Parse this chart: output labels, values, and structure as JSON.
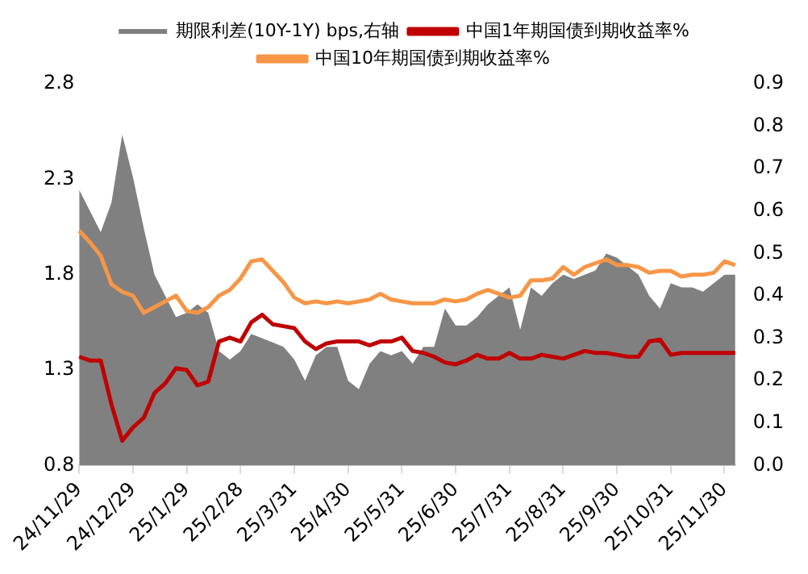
{
  "chart_data": {
    "type": "line",
    "categories": [
      "24/11/29",
      null,
      null,
      null,
      null,
      "24/12/29",
      null,
      null,
      null,
      null,
      "25/1/29",
      null,
      null,
      null,
      null,
      "25/2/28",
      null,
      null,
      null,
      null,
      "25/3/31",
      null,
      null,
      null,
      null,
      "25/4/30",
      null,
      null,
      null,
      null,
      "25/5/31",
      null,
      null,
      null,
      null,
      "25/6/30",
      null,
      null,
      null,
      null,
      "25/7/31",
      null,
      null,
      null,
      null,
      "25/8/31",
      null,
      null,
      null,
      null,
      "25/9/30",
      null,
      null,
      null,
      null,
      "25/10/31",
      null,
      null,
      null,
      null,
      "25/11/30",
      null
    ],
    "series": [
      {
        "name": "期限利差(10Y-1Y) bps,右轴",
        "type": "area",
        "axis": "y2",
        "color": "#808080",
        "values": [
          0.65,
          0.6,
          0.55,
          0.62,
          0.78,
          0.68,
          0.56,
          0.45,
          0.4,
          0.35,
          0.36,
          0.38,
          0.36,
          0.27,
          0.25,
          0.27,
          0.31,
          0.3,
          0.29,
          0.28,
          0.25,
          0.2,
          0.26,
          0.28,
          0.28,
          0.2,
          0.18,
          0.24,
          0.27,
          0.26,
          0.27,
          0.24,
          0.28,
          0.28,
          0.37,
          0.33,
          0.33,
          0.35,
          0.38,
          0.4,
          0.42,
          0.32,
          0.42,
          0.4,
          0.43,
          0.45,
          0.44,
          0.45,
          0.46,
          0.5,
          0.49,
          0.47,
          0.45,
          0.4,
          0.37,
          0.43,
          0.42,
          0.42,
          0.41,
          0.43,
          0.45,
          0.45
        ]
      },
      {
        "name": "中国1年期国债到期收益率%",
        "type": "line",
        "color": "#c00000",
        "values": [
          1.37,
          1.35,
          1.35,
          1.12,
          0.93,
          1.0,
          1.05,
          1.18,
          1.23,
          1.31,
          1.3,
          1.22,
          1.24,
          1.45,
          1.47,
          1.45,
          1.55,
          1.59,
          1.54,
          1.53,
          1.52,
          1.45,
          1.41,
          1.44,
          1.45,
          1.45,
          1.45,
          1.43,
          1.45,
          1.45,
          1.47,
          1.4,
          1.39,
          1.37,
          1.34,
          1.33,
          1.35,
          1.38,
          1.36,
          1.36,
          1.39,
          1.36,
          1.36,
          1.38,
          1.37,
          1.36,
          1.38,
          1.4,
          1.39,
          1.39,
          1.38,
          1.37,
          1.37,
          1.45,
          1.46,
          1.38,
          1.39,
          1.39,
          1.39,
          1.39,
          1.39,
          1.39
        ]
      },
      {
        "name": "中国10年期国债到期收益率%",
        "type": "line",
        "color": "#f79646",
        "values": [
          2.03,
          1.97,
          1.9,
          1.75,
          1.71,
          1.69,
          1.6,
          1.63,
          1.66,
          1.69,
          1.61,
          1.6,
          1.63,
          1.69,
          1.72,
          1.78,
          1.87,
          1.88,
          1.82,
          1.76,
          1.68,
          1.65,
          1.66,
          1.65,
          1.66,
          1.65,
          1.66,
          1.67,
          1.7,
          1.67,
          1.66,
          1.65,
          1.65,
          1.65,
          1.67,
          1.66,
          1.67,
          1.7,
          1.72,
          1.7,
          1.68,
          1.69,
          1.77,
          1.77,
          1.78,
          1.84,
          1.8,
          1.84,
          1.86,
          1.88,
          1.85,
          1.85,
          1.84,
          1.81,
          1.82,
          1.82,
          1.79,
          1.8,
          1.8,
          1.81,
          1.87,
          1.85
        ]
      }
    ],
    "ylim": [
      0.8,
      2.8
    ],
    "yticks": [
      0.8,
      1.3,
      1.8,
      2.3,
      2.8
    ],
    "y2lim": [
      0,
      0.9
    ],
    "y2ticks": [
      {
        "value": 0,
        "label": "0.0"
      },
      0.1,
      0.2,
      0.3,
      0.4,
      0.5,
      0.6,
      0.7,
      0.8,
      0.9
    ],
    "grid": false,
    "legend": "top",
    "marker": "none",
    "line_style": "solid"
  }
}
